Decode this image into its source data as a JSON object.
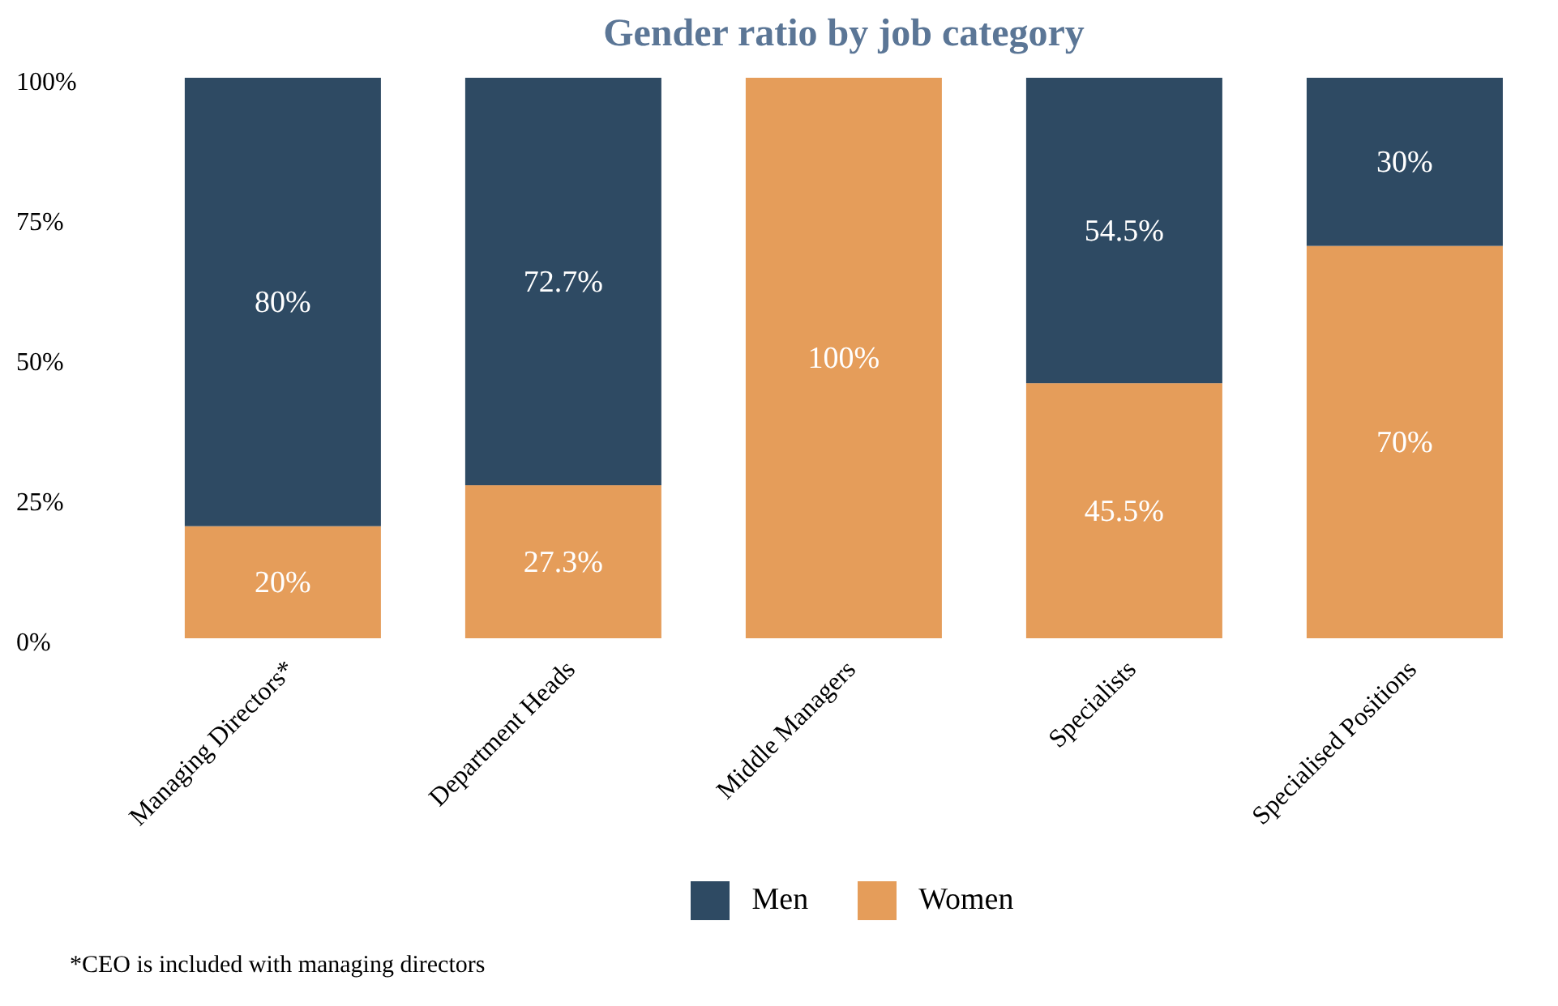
{
  "chart_data": {
    "type": "bar",
    "title": "Gender ratio by job category",
    "categories": [
      "Managing Directors*",
      "Department Heads",
      "Middle Managers",
      "Specialists",
      "Specialised Positions"
    ],
    "stacked": true,
    "series": [
      {
        "name": "Women",
        "color": "#e59d5a",
        "values": [
          20,
          27.3,
          100,
          45.5,
          70
        ],
        "value_labels": [
          "20%",
          "27.3%",
          "100%",
          "45.5%",
          "70%"
        ]
      },
      {
        "name": "Men",
        "color": "#2e4a63",
        "values": [
          80,
          72.7,
          0,
          54.5,
          30
        ],
        "value_labels": [
          "80%",
          "72.7%",
          null,
          "54.5%",
          "30%"
        ]
      }
    ],
    "ylim": [
      0,
      100
    ],
    "yticks": [
      {
        "value": 0,
        "label": "0%"
      },
      {
        "value": 25,
        "label": "25%"
      },
      {
        "value": 50,
        "label": "50%"
      },
      {
        "value": 75,
        "label": "75%"
      },
      {
        "value": 100,
        "label": "100%"
      }
    ],
    "grid": false,
    "legend": "bottom",
    "annotations": [
      "*CEO is included with managing directors"
    ]
  }
}
